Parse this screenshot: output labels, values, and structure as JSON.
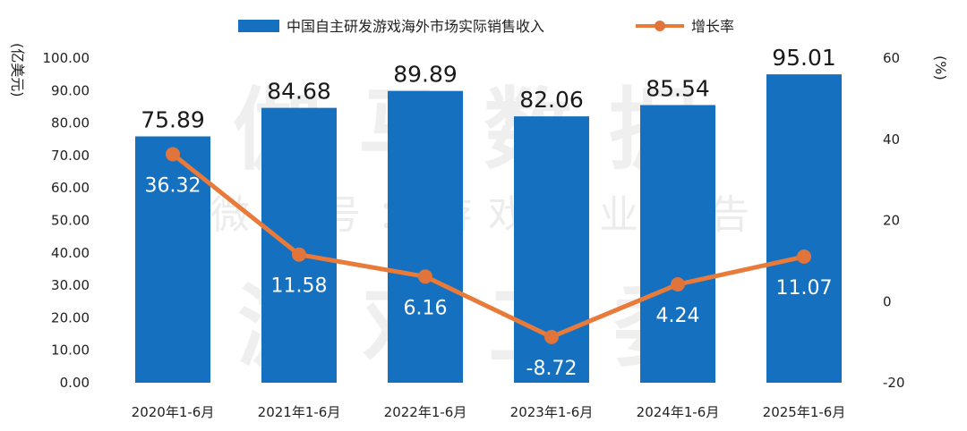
{
  "chart_data": {
    "type": "bar+line",
    "categories": [
      "2020年1-6月",
      "2021年1-6月",
      "2022年1-6月",
      "2023年1-6月",
      "2024年1-6月",
      "2025年1-6月"
    ],
    "series": [
      {
        "name": "中国自主研发游戏海外市场实际销售收入",
        "type": "bar",
        "axis": "left",
        "values": [
          75.89,
          84.68,
          89.89,
          82.06,
          85.54,
          95.01
        ],
        "labels": [
          "75.89",
          "84.68",
          "89.89",
          "82.06",
          "85.54",
          "95.01"
        ]
      },
      {
        "name": "增长率",
        "type": "line",
        "axis": "right",
        "values": [
          36.32,
          11.58,
          6.16,
          -8.72,
          4.24,
          11.07
        ],
        "labels": [
          "36.32",
          "11.58",
          "6.16",
          "-8.72",
          "4.24",
          "11.07"
        ]
      }
    ],
    "ylabel_left": "(亿美元)",
    "ylabel_right": "(%)",
    "ylim_left": [
      0,
      100
    ],
    "ylim_right": [
      -20,
      60
    ],
    "left_ticks": [
      "0.00",
      "10.00",
      "20.00",
      "30.00",
      "40.00",
      "50.00",
      "60.00",
      "70.00",
      "80.00",
      "90.00",
      "100.00"
    ],
    "right_ticks": [
      "-20",
      "0",
      "20",
      "40",
      "60"
    ],
    "legend_position": "top",
    "grid": false,
    "colors": {
      "bar": "#1570c0",
      "line": "#e87b3a",
      "marker": "#e0743a"
    }
  },
  "watermark": {
    "line1": "伽马数据",
    "line2": "微信号：游戏产业报告",
    "line3": "游戏工委"
  }
}
